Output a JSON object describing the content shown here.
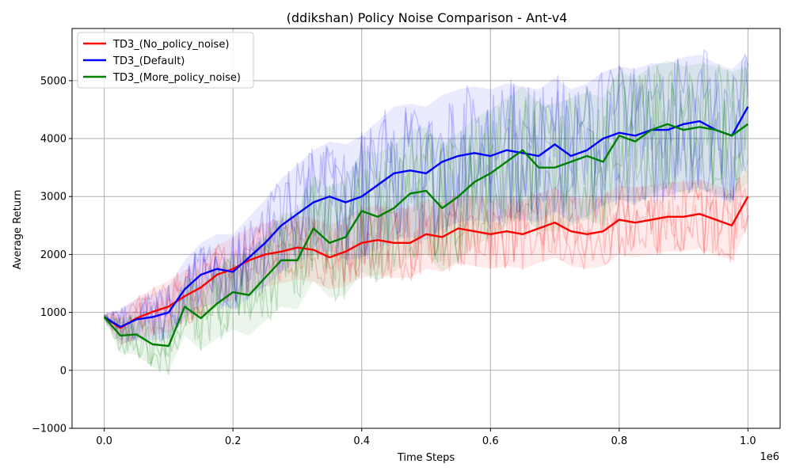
{
  "chart_data": {
    "type": "line",
    "title": "(ddikshan) Policy Noise Comparison - Ant-v4",
    "xlabel": "Time Steps",
    "ylabel": "Average Return",
    "x_offset_label": "1e6",
    "x_scale_factor": 1000000,
    "xlim": [
      -0.05,
      1.05
    ],
    "ylim": [
      -1000,
      5900
    ],
    "xticks": [
      0.0,
      0.2,
      0.4,
      0.6,
      0.8,
      1.0
    ],
    "xtick_labels": [
      "0.0",
      "0.2",
      "0.4",
      "0.6",
      "0.8",
      "1.0"
    ],
    "yticks": [
      -1000,
      0,
      1000,
      2000,
      3000,
      4000,
      5000
    ],
    "ytick_labels": [
      "−1000",
      "0",
      "1000",
      "2000",
      "3000",
      "4000",
      "5000"
    ],
    "grid": true,
    "legend_position": "top-left",
    "x": [
      0.0,
      0.025,
      0.05,
      0.075,
      0.1,
      0.125,
      0.15,
      0.175,
      0.2,
      0.225,
      0.25,
      0.275,
      0.3,
      0.325,
      0.35,
      0.375,
      0.4,
      0.425,
      0.45,
      0.475,
      0.5,
      0.525,
      0.55,
      0.575,
      0.6,
      0.625,
      0.65,
      0.675,
      0.7,
      0.725,
      0.75,
      0.775,
      0.8,
      0.825,
      0.85,
      0.875,
      0.9,
      0.925,
      0.95,
      0.975,
      1.0
    ],
    "series": [
      {
        "name": "TD3_(No_policy_noise)",
        "color": "#ff0000",
        "values": [
          920,
          730,
          900,
          1010,
          1100,
          1280,
          1430,
          1650,
          1750,
          1900,
          2000,
          2050,
          2120,
          2080,
          1950,
          2050,
          2200,
          2250,
          2200,
          2200,
          2350,
          2300,
          2450,
          2400,
          2350,
          2400,
          2350,
          2450,
          2550,
          2400,
          2350,
          2400,
          2600,
          2550,
          2600,
          2650,
          2650,
          2700,
          2600,
          2500,
          3000
        ],
        "band_half_width": [
          40,
          300,
          350,
          400,
          450,
          450,
          500,
          500,
          550,
          550,
          550,
          550,
          550,
          550,
          550,
          600,
          600,
          600,
          600,
          600,
          600,
          600,
          600,
          600,
          600,
          600,
          600,
          600,
          600,
          600,
          600,
          600,
          600,
          600,
          600,
          600,
          600,
          600,
          600,
          600,
          500
        ]
      },
      {
        "name": "TD3_(Default)",
        "color": "#0000ff",
        "values": [
          920,
          750,
          880,
          920,
          1000,
          1400,
          1650,
          1750,
          1700,
          1950,
          2200,
          2500,
          2700,
          2900,
          3000,
          2900,
          3000,
          3200,
          3400,
          3450,
          3400,
          3600,
          3700,
          3750,
          3700,
          3800,
          3750,
          3700,
          3900,
          3700,
          3800,
          4000,
          4100,
          4050,
          4150,
          4150,
          4250,
          4300,
          4150,
          4050,
          4550
        ],
        "band_half_width": [
          40,
          300,
          350,
          400,
          450,
          500,
          550,
          600,
          650,
          700,
          750,
          800,
          850,
          900,
          950,
          1000,
          1050,
          1100,
          1150,
          1150,
          1150,
          1150,
          1150,
          1150,
          1150,
          1150,
          1150,
          1150,
          1150,
          1150,
          1150,
          1150,
          1150,
          1150,
          1150,
          1150,
          1150,
          1150,
          1150,
          1150,
          900
        ]
      },
      {
        "name": "TD3_(More_policy_noise)",
        "color": "#008000",
        "values": [
          920,
          600,
          620,
          450,
          420,
          1100,
          900,
          1150,
          1350,
          1300,
          1600,
          1900,
          1900,
          2450,
          2200,
          2300,
          2750,
          2650,
          2800,
          3050,
          3100,
          2800,
          3000,
          3250,
          3400,
          3600,
          3800,
          3500,
          3500,
          3600,
          3700,
          3600,
          4050,
          3950,
          4150,
          4250,
          4150,
          4200,
          4150,
          4050,
          4250
        ],
        "band_half_width": [
          40,
          300,
          350,
          400,
          450,
          500,
          550,
          600,
          650,
          700,
          750,
          800,
          850,
          900,
          950,
          1000,
          1050,
          1100,
          1100,
          1100,
          1100,
          1100,
          1100,
          1100,
          1100,
          1100,
          1100,
          1100,
          1100,
          1100,
          1100,
          1100,
          1100,
          1100,
          1100,
          1100,
          1100,
          1100,
          1100,
          1100,
          1000
        ]
      }
    ]
  }
}
